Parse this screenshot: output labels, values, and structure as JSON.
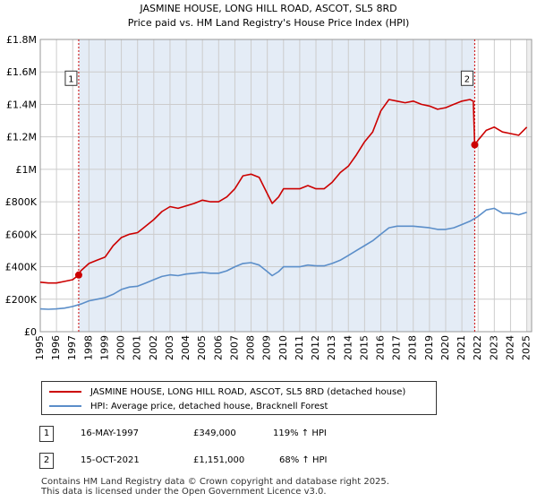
{
  "chart_data": {
    "type": "line",
    "title": "JASMINE HOUSE, LONG HILL ROAD, ASCOT, SL5 8RD",
    "subtitle": "Price paid vs. HM Land Registry's House Price Index (HPI)",
    "xlim": [
      1995,
      2025.3
    ],
    "ylim": [
      0,
      1800000
    ],
    "x_ticks": [
      1995,
      1996,
      1997,
      1998,
      1999,
      2000,
      2001,
      2002,
      2003,
      2004,
      2005,
      2006,
      2007,
      2008,
      2009,
      2010,
      2011,
      2012,
      2013,
      2014,
      2015,
      2016,
      2017,
      2018,
      2019,
      2020,
      2021,
      2022,
      2023,
      2024,
      2025
    ],
    "y_ticks": [
      {
        "value": 0,
        "label": "£0"
      },
      {
        "value": 200000,
        "label": "£200K"
      },
      {
        "value": 400000,
        "label": "£400K"
      },
      {
        "value": 600000,
        "label": "£600K"
      },
      {
        "value": 800000,
        "label": "£800K"
      },
      {
        "value": 1000000,
        "label": "£1M"
      },
      {
        "value": 1200000,
        "label": "£1.2M"
      },
      {
        "value": 1400000,
        "label": "£1.4M"
      },
      {
        "value": 1600000,
        "label": "£1.6M"
      },
      {
        "value": 1800000,
        "label": "£1.8M"
      }
    ],
    "grid": true,
    "shaded_regions": [
      [
        1997.37,
        2021.79
      ]
    ],
    "series": [
      {
        "name": "JASMINE HOUSE, LONG HILL ROAD, ASCOT, SL5 8RD (detached house)",
        "color": "#cc0000",
        "x": [
          1995,
          1995.5,
          1996,
          1996.5,
          1997,
          1997.37,
          1997.5,
          1998,
          1998.5,
          1999,
          1999.5,
          2000,
          2000.5,
          2001,
          2001.5,
          2002,
          2002.5,
          2003,
          2003.5,
          2004,
          2004.5,
          2005,
          2005.5,
          2006,
          2006.5,
          2007,
          2007.5,
          2008,
          2008.5,
          2009,
          2009.3,
          2009.7,
          2010,
          2010.5,
          2011,
          2011.5,
          2012,
          2012.5,
          2013,
          2013.5,
          2014,
          2014.5,
          2015,
          2015.5,
          2016,
          2016.5,
          2017,
          2017.5,
          2018,
          2018.5,
          2019,
          2019.5,
          2020,
          2020.5,
          2021,
          2021.5,
          2021.7,
          2021.79,
          2022,
          2022.5,
          2023,
          2023.5,
          2024,
          2024.5,
          2025
        ],
        "values": [
          305000,
          300000,
          300000,
          310000,
          320000,
          349000,
          375000,
          420000,
          440000,
          460000,
          530000,
          580000,
          600000,
          610000,
          650000,
          690000,
          740000,
          770000,
          760000,
          775000,
          790000,
          810000,
          800000,
          800000,
          830000,
          880000,
          960000,
          970000,
          950000,
          850000,
          790000,
          830000,
          880000,
          880000,
          880000,
          900000,
          880000,
          880000,
          920000,
          980000,
          1020000,
          1090000,
          1170000,
          1230000,
          1360000,
          1430000,
          1420000,
          1410000,
          1420000,
          1400000,
          1390000,
          1370000,
          1380000,
          1400000,
          1420000,
          1430000,
          1420000,
          1151000,
          1180000,
          1240000,
          1260000,
          1230000,
          1220000,
          1210000,
          1260000
        ]
      },
      {
        "name": "HPI: Average price, detached house, Bracknell Forest",
        "color": "#5b8ec9",
        "x": [
          1995,
          1995.5,
          1996,
          1996.5,
          1997,
          1997.5,
          1998,
          1998.5,
          1999,
          1999.5,
          2000,
          2000.5,
          2001,
          2001.5,
          2002,
          2002.5,
          2003,
          2003.5,
          2004,
          2004.5,
          2005,
          2005.5,
          2006,
          2006.5,
          2007,
          2007.5,
          2008,
          2008.5,
          2009,
          2009.3,
          2009.7,
          2010,
          2010.5,
          2011,
          2011.5,
          2012,
          2012.5,
          2013,
          2013.5,
          2014,
          2014.5,
          2015,
          2015.5,
          2016,
          2016.5,
          2017,
          2017.5,
          2018,
          2018.5,
          2019,
          2019.5,
          2020,
          2020.5,
          2021,
          2021.5,
          2022,
          2022.5,
          2023,
          2023.5,
          2024,
          2024.5,
          2025
        ],
        "values": [
          140000,
          138000,
          140000,
          145000,
          155000,
          170000,
          190000,
          200000,
          210000,
          230000,
          260000,
          275000,
          280000,
          300000,
          320000,
          340000,
          350000,
          345000,
          355000,
          360000,
          365000,
          360000,
          360000,
          375000,
          400000,
          420000,
          425000,
          410000,
          370000,
          345000,
          370000,
          400000,
          400000,
          400000,
          410000,
          405000,
          405000,
          420000,
          440000,
          470000,
          500000,
          530000,
          560000,
          600000,
          640000,
          650000,
          650000,
          650000,
          645000,
          640000,
          630000,
          630000,
          640000,
          660000,
          680000,
          710000,
          750000,
          760000,
          730000,
          730000,
          720000,
          735000
        ]
      }
    ],
    "sales": [
      {
        "id": "1",
        "x": 1997.37,
        "value": 349000
      },
      {
        "id": "2",
        "x": 2021.79,
        "value": 1151000
      }
    ]
  },
  "legend": {
    "property_label": "JASMINE HOUSE, LONG HILL ROAD, ASCOT, SL5 8RD (detached house)",
    "hpi_label": "HPI: Average price, detached house, Bracknell Forest"
  },
  "annotations": [
    {
      "id": "1",
      "date": "16-MAY-1997",
      "price": "£349,000",
      "hpi": "119% ↑ HPI"
    },
    {
      "id": "2",
      "date": "15-OCT-2021",
      "price": "£1,151,000",
      "hpi": "68% ↑ HPI"
    }
  ],
  "footer": {
    "line1": "Contains HM Land Registry data © Crown copyright and database right 2025.",
    "line2": "This data is licensed under the Open Government Licence v3.0."
  }
}
